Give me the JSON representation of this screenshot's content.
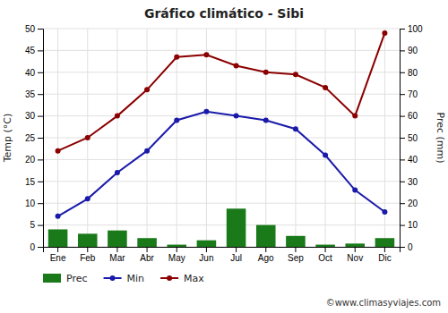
{
  "chart_data": {
    "type": "bar",
    "title": "Gráfico climático - Sibi",
    "categories": [
      "Ene",
      "Feb",
      "Mar",
      "Abr",
      "May",
      "Jun",
      "Jul",
      "Ago",
      "Sep",
      "Oct",
      "Nov",
      "Dic"
    ],
    "series": [
      {
        "name": "Prec",
        "type": "bar",
        "axis": "y2",
        "color": "#1a7a1a",
        "values": [
          8,
          6,
          7.5,
          4,
          1,
          3,
          17.5,
          10,
          5,
          1,
          1.5,
          4
        ]
      },
      {
        "name": "Min",
        "type": "line",
        "color": "#1a1aaa",
        "marker": "circle",
        "values": [
          7,
          11,
          17,
          22,
          29,
          31,
          30,
          29,
          27,
          21,
          13,
          8
        ]
      },
      {
        "name": "Max",
        "type": "line",
        "color": "#8b0000",
        "marker": "circle",
        "values": [
          22,
          25,
          30,
          36,
          43.5,
          44,
          41.5,
          40,
          39.5,
          36.5,
          30,
          49
        ]
      }
    ],
    "ylabel": "Temp (°C)",
    "y2label": "Prec (mm)",
    "ylim": [
      0,
      50
    ],
    "yticks": [
      0,
      5,
      10,
      15,
      20,
      25,
      30,
      35,
      40,
      45,
      50
    ],
    "y2lim": [
      0,
      100
    ],
    "y2ticks": [
      0,
      10,
      20,
      30,
      40,
      50,
      60,
      70,
      80,
      90,
      100
    ],
    "grid": true,
    "legend": "bottom",
    "annotations": [
      "©www.climasyviajes.com"
    ]
  }
}
